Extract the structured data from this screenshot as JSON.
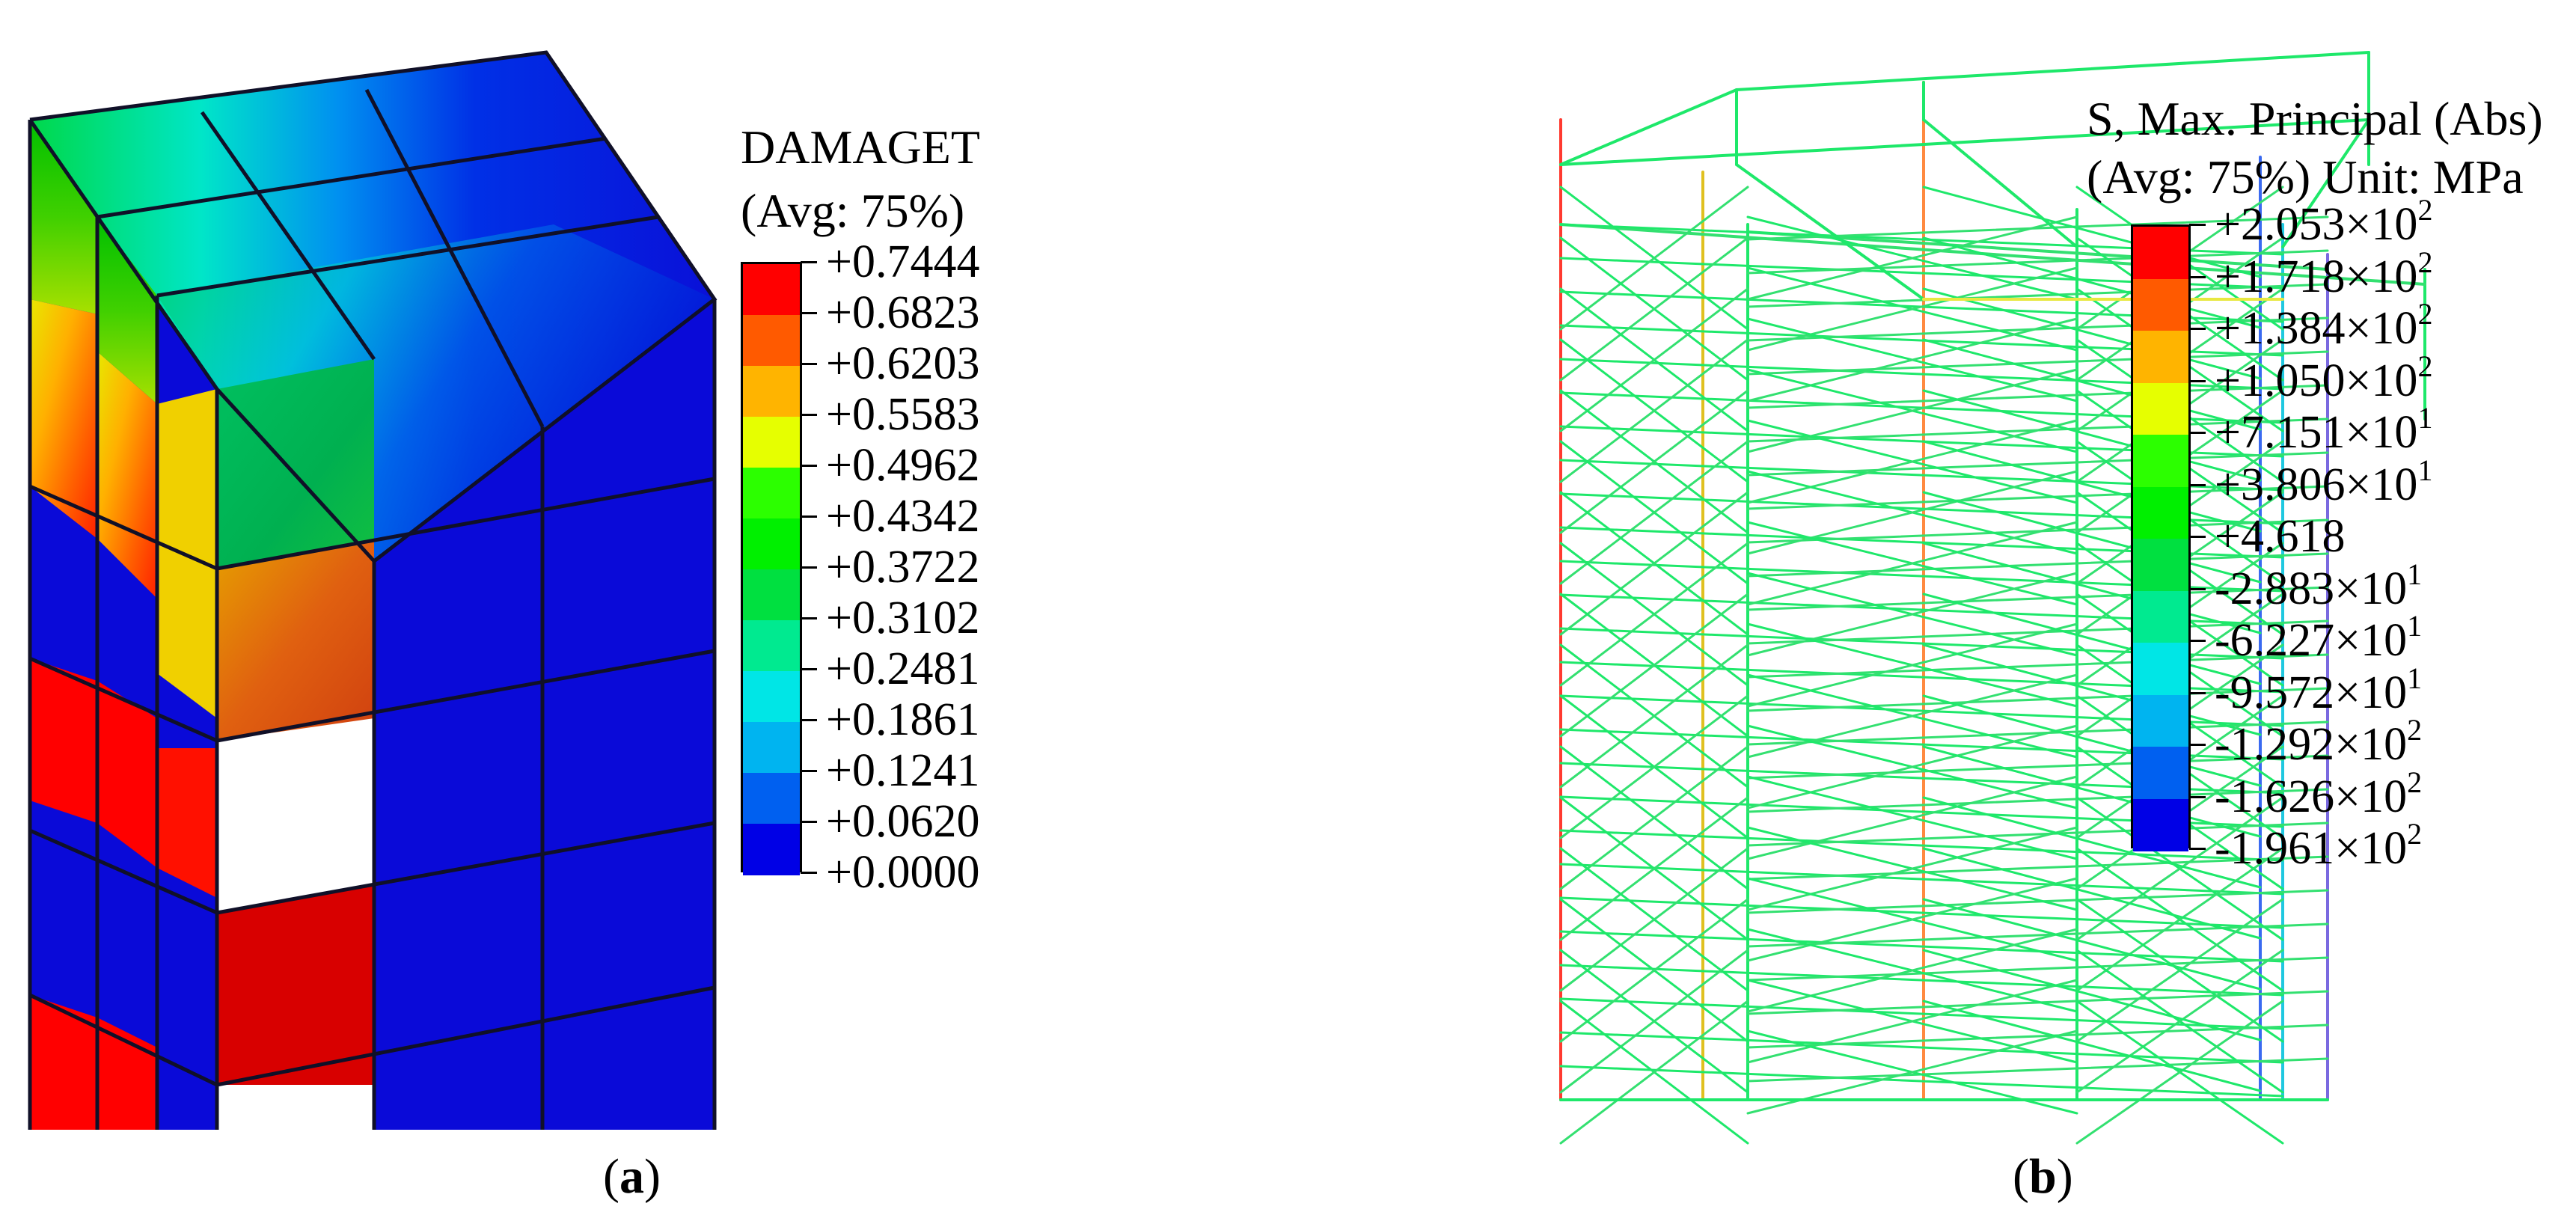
{
  "panel_a": {
    "caption_open": "(",
    "caption_letter": "a",
    "caption_close": ")",
    "legend": {
      "title": "DAMAGET",
      "subtitle": "(Avg: 75%)",
      "colors": [
        "#ff0000",
        "#ff5a00",
        "#ffb400",
        "#e6ff00",
        "#2cff00",
        "#00f000",
        "#00e040",
        "#00ea90",
        "#00e6e6",
        "#00b4f0",
        "#0060f0",
        "#0000e6"
      ],
      "labels": [
        "+0.7444",
        "+0.6823",
        "+0.6203",
        "+0.5583",
        "+0.4962",
        "+0.4342",
        "+0.3722",
        "+0.3102",
        "+0.2481",
        "+0.1861",
        "+0.1241",
        "+0.0620",
        "+0.0000"
      ]
    }
  },
  "panel_b": {
    "caption_open": "(",
    "caption_letter": "b",
    "caption_close": ")",
    "legend": {
      "title": "S, Max. Principal (Abs)",
      "subtitle": "(Avg: 75%) Unit: MPa",
      "colors": [
        "#ff0000",
        "#ff5a00",
        "#ffb400",
        "#e6ff00",
        "#2cff00",
        "#00f000",
        "#00e040",
        "#00ea90",
        "#00e6e6",
        "#00b4f0",
        "#0060f0",
        "#0000e6"
      ],
      "labels": [
        {
          "mantissa": "+2.053×10",
          "exp": "2"
        },
        {
          "mantissa": "+1.718×10",
          "exp": "2"
        },
        {
          "mantissa": "+1.384×10",
          "exp": "2"
        },
        {
          "mantissa": "+1.050×10",
          "exp": "2"
        },
        {
          "mantissa": "+7.151×10",
          "exp": "1"
        },
        {
          "mantissa": "+3.806×10",
          "exp": "1"
        },
        {
          "mantissa": "+4.618",
          "exp": ""
        },
        {
          "mantissa": "-2.883×10",
          "exp": "1"
        },
        {
          "mantissa": "-6.227×10",
          "exp": "1"
        },
        {
          "mantissa": "-9.572×10",
          "exp": "1"
        },
        {
          "mantissa": "-1.292×10",
          "exp": "2"
        },
        {
          "mantissa": "-1.626×10",
          "exp": "2"
        },
        {
          "mantissa": "-1.961×10",
          "exp": "2"
        }
      ]
    }
  }
}
